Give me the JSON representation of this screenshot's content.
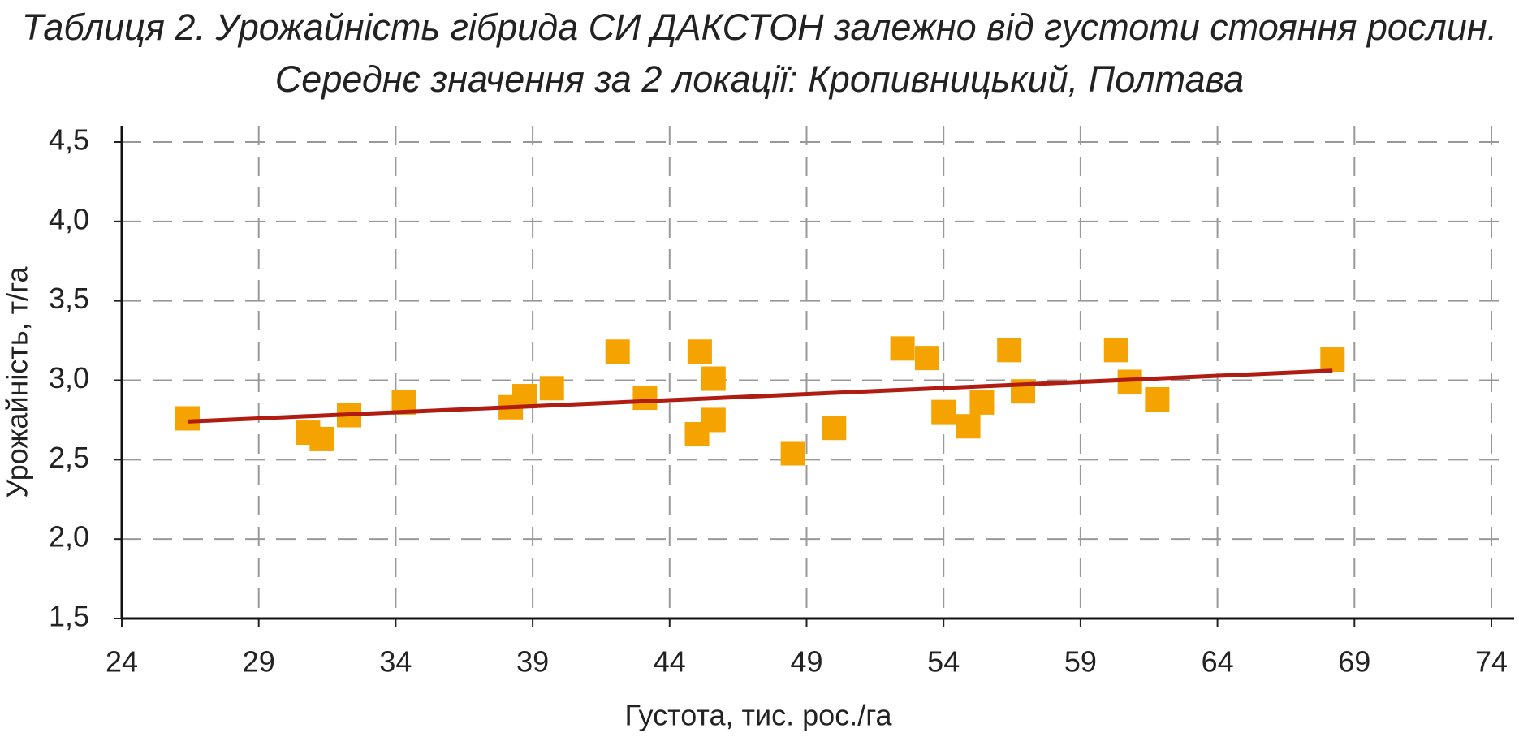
{
  "chart_data": {
    "type": "scatter",
    "title": "Таблиця 2. Урожайність гібрида СИ ДАКСТОН залежно від густоти стояння рослин. Середнє значення за 2 локації: Кропивницький, Полтава",
    "x_label": "Густота, тис. рос./га",
    "y_label": "Урожайність, т/га",
    "series": [
      {
        "color": "#f5a300",
        "x": [
          26.4,
          30.8,
          31.3,
          32.3,
          34.3,
          38.2,
          38.7,
          39.7,
          42.1,
          43.1,
          45.1,
          45.0,
          45.6,
          45.6,
          48.5,
          50.0,
          52.5,
          53.4,
          54.0,
          54.9,
          55.4,
          56.4,
          56.9,
          60.3,
          60.8,
          61.8,
          68.2
        ],
        "values": [
          2.76,
          2.67,
          2.63,
          2.78,
          2.86,
          2.83,
          2.9,
          2.95,
          3.18,
          2.89,
          3.18,
          2.66,
          3.01,
          2.75,
          2.54,
          2.7,
          3.2,
          3.14,
          2.8,
          2.71,
          2.86,
          3.19,
          2.93,
          3.19,
          2.99,
          2.88,
          3.13
        ]
      }
    ],
    "trendline": {
      "color": "#b01c12",
      "x": [
        26.4,
        68.2
      ],
      "values": [
        2.74,
        3.06
      ]
    },
    "xlim": [
      24,
      74
    ],
    "xticks": [
      24,
      29,
      34,
      39,
      44,
      49,
      54,
      59,
      64,
      69,
      74
    ],
    "ylim": [
      1.5,
      4.5
    ],
    "yticks": [
      {
        "value": 1.5,
        "label": "1,5"
      },
      {
        "value": 2.0,
        "label": "2,0"
      },
      {
        "value": 2.5,
        "label": "2,5"
      },
      {
        "value": 3.0,
        "label": "3,0"
      },
      {
        "value": 3.5,
        "label": "3,5"
      },
      {
        "value": 4.0,
        "label": "4,0"
      },
      {
        "value": 4.5,
        "label": "4,5"
      }
    ],
    "grid": true
  }
}
